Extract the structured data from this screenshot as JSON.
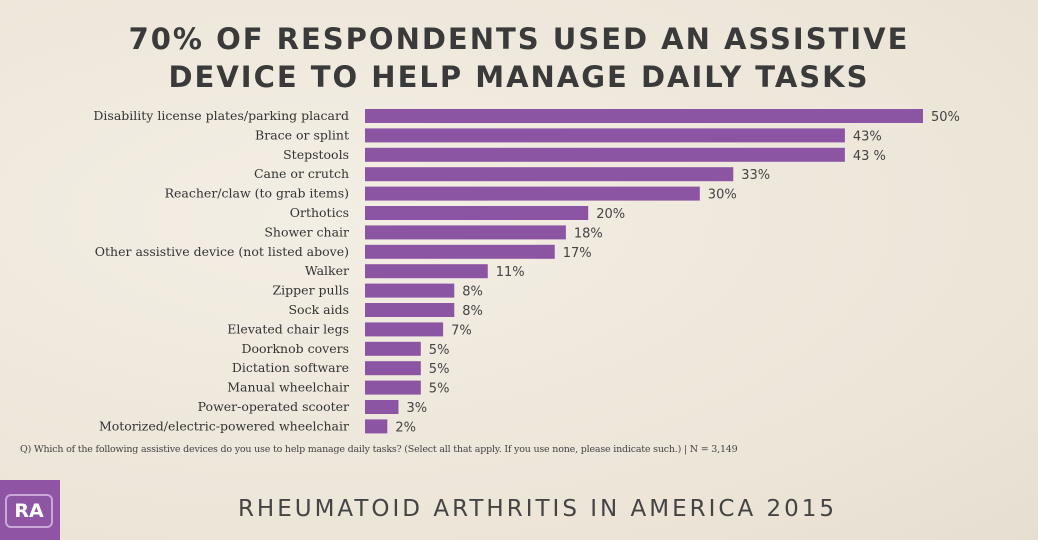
{
  "chart_data": {
    "type": "bar",
    "orientation": "horizontal",
    "title": "70% OF RESPONDENTS USED AN ASSISTIVE DEVICE TO HELP MANAGE DAILY TASKS",
    "title_lines": [
      "70% OF RESPONDENTS USED AN ASSISTIVE",
      "DEVICE TO HELP MANAGE DAILY TASKS"
    ],
    "categories": [
      "Disability license plates/parking placard",
      "Brace or splint",
      "Stepstools",
      "Cane or crutch",
      "Reacher/claw (to grab items)",
      "Orthotics",
      "Shower chair",
      "Other assistive device (not listed above)",
      "Walker",
      "Zipper pulls",
      "Sock aids",
      "Elevated chair legs",
      "Doorknob covers",
      "Dictation software",
      "Manual wheelchair",
      "Power-operated scooter",
      "Motorized/electric-powered wheelchair"
    ],
    "values": [
      50,
      43,
      43,
      33,
      30,
      20,
      18,
      17,
      11,
      8,
      8,
      7,
      5,
      5,
      5,
      3,
      2
    ],
    "data_labels": [
      "50%",
      "43%",
      "43 %",
      "33%",
      "30%",
      "20%",
      "18%",
      "17%",
      "11%",
      "8%",
      "8%",
      "7%",
      "5%",
      "5%",
      "5%",
      "3%",
      "2%"
    ],
    "xlim": [
      0,
      50
    ],
    "grid": false,
    "bar_color": "#8b55a3",
    "xlabel": "",
    "ylabel": ""
  },
  "note": "Q) Which of the following assistive devices do you use to help manage daily tasks? (Select all that apply. If you use none, please indicate such.) | N = 3,149",
  "footer": "RHEUMATOID ARTHRITIS IN AMERICA 2015",
  "logo": "RA"
}
